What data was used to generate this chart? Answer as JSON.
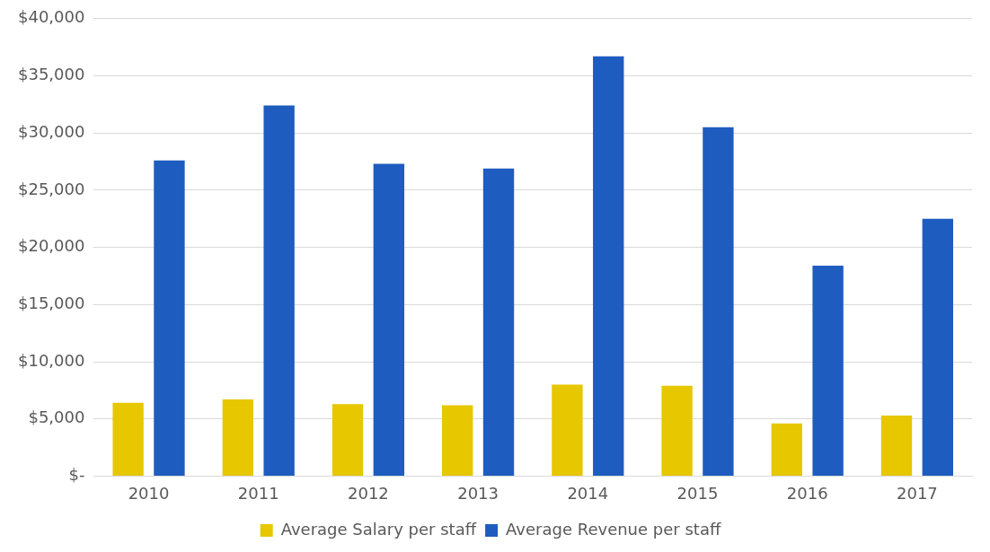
{
  "chart_data": {
    "type": "bar",
    "categories": [
      "2010",
      "2011",
      "2012",
      "2013",
      "2014",
      "2015",
      "2016",
      "2017"
    ],
    "series": [
      {
        "name": "Average Salary per staff",
        "color": "#e6c700",
        "values": [
          6400,
          6700,
          6300,
          6200,
          8000,
          7900,
          4600,
          5300
        ]
      },
      {
        "name": "Average Revenue per staff",
        "color": "#1f5cbf",
        "values": [
          27600,
          32400,
          27300,
          26900,
          36700,
          30500,
          18400,
          22500
        ]
      }
    ],
    "ylim": [
      0,
      40000
    ],
    "yticks": [
      {
        "value": 0,
        "label": "$-"
      },
      {
        "value": 5000,
        "label": "$5,000"
      },
      {
        "value": 10000,
        "label": "$10,000"
      },
      {
        "value": 15000,
        "label": "$15,000"
      },
      {
        "value": 20000,
        "label": "$20,000"
      },
      {
        "value": 25000,
        "label": "$25,000"
      },
      {
        "value": 30000,
        "label": "$30,000"
      },
      {
        "value": 35000,
        "label": "$35,000"
      },
      {
        "value": 40000,
        "label": "$40,000"
      }
    ],
    "grid": "y",
    "legend": "bottom"
  }
}
